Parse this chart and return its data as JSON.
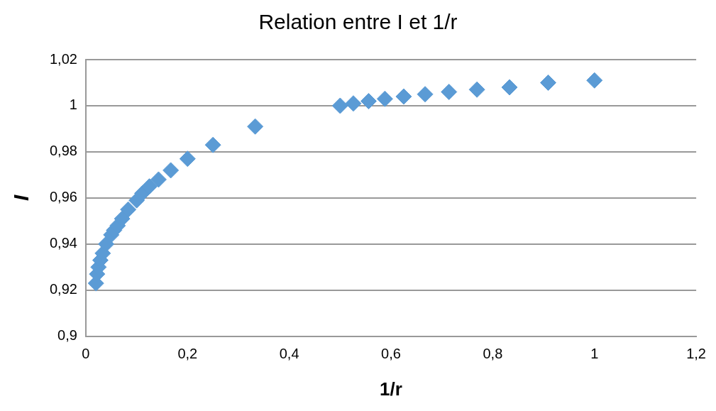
{
  "chart_data": {
    "type": "scatter",
    "title": "Relation entre I et 1/r",
    "xlabel": "1/r",
    "ylabel": "I",
    "x": [
      0.02,
      0.0222,
      0.025,
      0.0286,
      0.0333,
      0.04,
      0.05,
      0.0556,
      0.0625,
      0.0714,
      0.0833,
      0.1,
      0.111,
      0.125,
      0.143,
      0.167,
      0.2,
      0.25,
      0.333,
      0.5,
      0.526,
      0.556,
      0.588,
      0.625,
      0.667,
      0.714,
      0.769,
      0.833,
      0.909,
      1
    ],
    "series": [
      {
        "color": "#5b9bd5",
        "values": [
          0.923,
          0.927,
          0.93,
          0.933,
          0.936,
          0.94,
          0.944,
          0.946,
          0.948,
          0.951,
          0.955,
          0.959,
          0.962,
          0.965,
          0.968,
          0.972,
          0.977,
          0.983,
          0.991,
          1.0,
          1.001,
          1.002,
          1.003,
          1.004,
          1.005,
          1.006,
          1.007,
          1.008,
          1.01,
          1.011
        ]
      }
    ],
    "marker": "diamond",
    "grid": "y",
    "legend": false,
    "xlim": [
      0,
      1.2
    ],
    "xticks": [
      0,
      {
        "value": 0.2,
        "label": "0,2"
      },
      {
        "value": 0.4,
        "label": "0,4"
      },
      {
        "value": 0.6,
        "label": "0,6"
      },
      {
        "value": 0.8,
        "label": "0,8"
      },
      1,
      {
        "value": 1.2,
        "label": "1,2"
      }
    ],
    "ylim": [
      0.9,
      1.02
    ],
    "yticks": [
      {
        "value": 0.9,
        "label": "0,9"
      },
      {
        "value": 0.92,
        "label": "0,92"
      },
      {
        "value": 0.94,
        "label": "0,94"
      },
      {
        "value": 0.96,
        "label": "0,96"
      },
      {
        "value": 0.98,
        "label": "0,98"
      },
      1,
      {
        "value": 1.02,
        "label": "1,02"
      }
    ]
  }
}
